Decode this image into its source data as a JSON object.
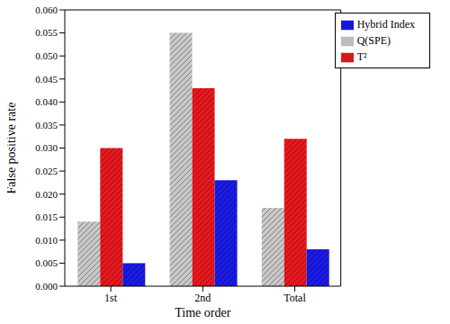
{
  "chart_data": {
    "type": "bar",
    "x_label": "Time order",
    "y_label": "False positive rate",
    "categories": [
      "1st",
      "2nd",
      "Total"
    ],
    "series": [
      {
        "name": "Q(SPE)",
        "color": "#c8c8c8",
        "values": [
          0.014,
          0.055,
          0.017
        ]
      },
      {
        "name": "T²",
        "color": "#e8181e",
        "values": [
          0.03,
          0.043,
          0.032
        ]
      },
      {
        "name": "Hybrid Index",
        "color": "#1a1ae6",
        "values": [
          0.005,
          0.023,
          0.008
        ]
      }
    ],
    "ylim": [
      0,
      0.06
    ],
    "yticks": [
      {
        "value": 0,
        "label": "0.000"
      },
      0.005,
      {
        "value": 0.01,
        "label": "0.010"
      },
      0.015,
      {
        "value": 0.02,
        "label": "0.020"
      },
      0.025,
      {
        "value": 0.03,
        "label": "0.030"
      },
      0.035,
      {
        "value": 0.04,
        "label": "0.040"
      },
      0.045,
      {
        "value": 0.05,
        "label": "0.050"
      },
      0.055,
      {
        "value": 0.06,
        "label": "0.060"
      }
    ],
    "legend": "upper right",
    "grid": false
  }
}
